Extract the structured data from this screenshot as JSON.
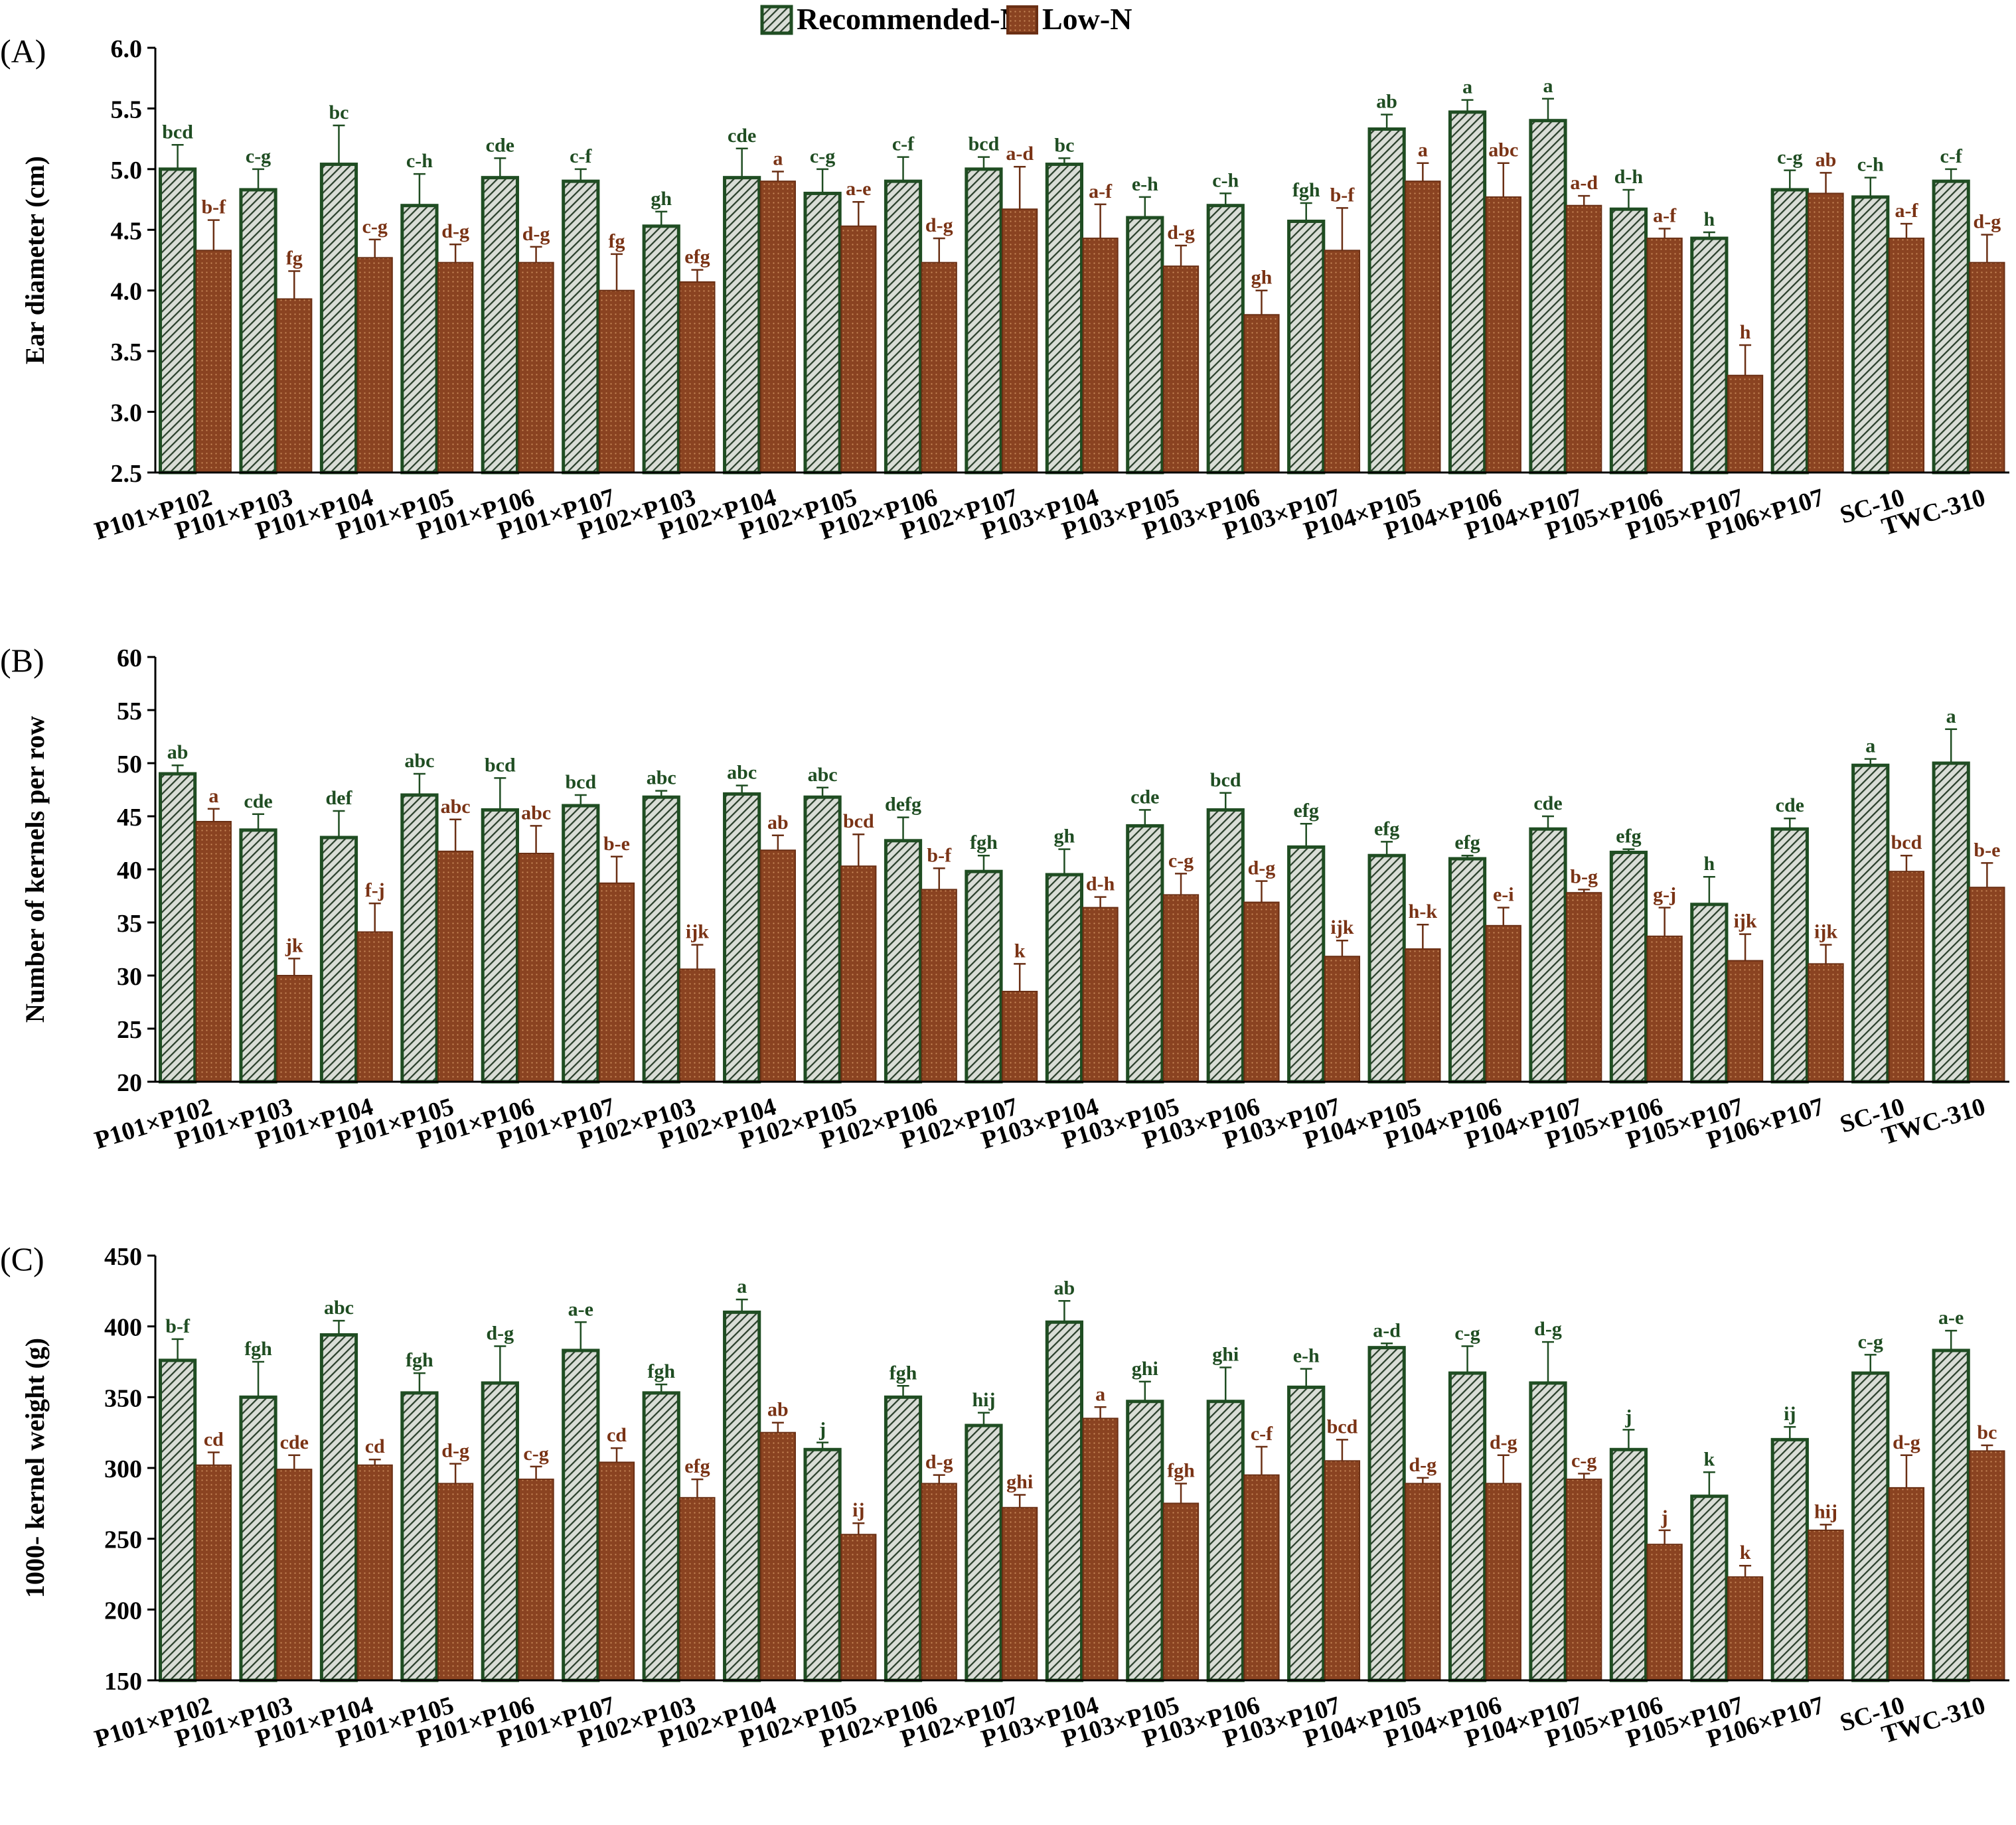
{
  "legend": {
    "recommended_label": "Recommended-N",
    "low_label": "Low-N"
  },
  "colors": {
    "recommended_fill": "#d9ddd6",
    "recommended_stroke": "#1f4d22",
    "recommended_hatch": "#2a3f2b",
    "low_fill": "#8a4321",
    "low_stroke": "#6a2f14",
    "low_dot": "#c98a5a",
    "recommended_letter": "#1f4d22",
    "low_letter": "#7a3315"
  },
  "chart_data": [
    {
      "type": "bar",
      "panel_label": "(A)",
      "ylabel": "Ear diameter (cm)",
      "ylim": [
        2.5,
        6.0
      ],
      "yticks": [
        2.5,
        3.0,
        3.5,
        4.0,
        4.5,
        5.0,
        5.5,
        6.0
      ],
      "tick_decimals": 1,
      "categories": [
        "P101×P102",
        "P101×P103",
        "P101×P104",
        "P101×P105",
        "P101×P106",
        "P101×P107",
        "P102×P103",
        "P102×P104",
        "P102×P105",
        "P102×P106",
        "P102×P107",
        "P103×P104",
        "P103×P105",
        "P103×P106",
        "P103×P107",
        "P104×P105",
        "P104×P106",
        "P104×P107",
        "P105×P106",
        "P105×P107",
        "P106×P107",
        "SC-10",
        "TWC-310"
      ],
      "series": [
        {
          "name": "Recommended-N",
          "values": [
            5.0,
            4.83,
            5.04,
            4.7,
            4.93,
            4.9,
            4.53,
            4.93,
            4.8,
            4.9,
            5.0,
            5.04,
            4.6,
            4.7,
            4.57,
            5.33,
            5.47,
            5.4,
            4.67,
            4.43,
            4.83,
            4.77,
            4.9
          ],
          "errors": [
            0.2,
            0.17,
            0.32,
            0.26,
            0.16,
            0.1,
            0.12,
            0.24,
            0.2,
            0.2,
            0.1,
            0.05,
            0.17,
            0.1,
            0.15,
            0.12,
            0.1,
            0.18,
            0.16,
            0.05,
            0.16,
            0.16,
            0.1
          ],
          "letters": [
            "bcd",
            "c-g",
            "bc",
            "c-h",
            "cde",
            "c-f",
            "gh",
            "cde",
            "c-g",
            "c-f",
            "bcd",
            "bc",
            "e-h",
            "c-h",
            "fgh",
            "ab",
            "a",
            "a",
            "d-h",
            "h",
            "c-g",
            "c-h",
            "c-f"
          ]
        },
        {
          "name": "Low-N",
          "values": [
            4.33,
            3.93,
            4.27,
            4.23,
            4.23,
            4.0,
            4.07,
            4.9,
            4.53,
            4.23,
            4.67,
            4.43,
            4.2,
            3.8,
            4.33,
            4.9,
            4.77,
            4.7,
            4.43,
            3.3,
            4.8,
            4.43,
            4.23
          ],
          "errors": [
            0.25,
            0.23,
            0.15,
            0.15,
            0.13,
            0.3,
            0.1,
            0.08,
            0.2,
            0.2,
            0.35,
            0.28,
            0.17,
            0.2,
            0.35,
            0.15,
            0.28,
            0.08,
            0.08,
            0.25,
            0.17,
            0.12,
            0.23
          ],
          "letters": [
            "b-f",
            "fg",
            "c-g",
            "d-g",
            "d-g",
            "fg",
            "efg",
            "a",
            "a-e",
            "d-g",
            "a-d",
            "a-f",
            "d-g",
            "gh",
            "b-f",
            "a",
            "abc",
            "a-d",
            "a-f",
            "h",
            "ab",
            "a-f",
            "d-g"
          ]
        }
      ]
    },
    {
      "type": "bar",
      "panel_label": "(B)",
      "ylabel": "Number of kernels per row",
      "ylim": [
        20,
        60
      ],
      "yticks": [
        20,
        25,
        30,
        35,
        40,
        45,
        50,
        55,
        60
      ],
      "tick_decimals": 0,
      "categories": [
        "P101×P102",
        "P101×P103",
        "P101×P104",
        "P101×P105",
        "P101×P106",
        "P101×P107",
        "P102×P103",
        "P102×P104",
        "P102×P105",
        "P102×P106",
        "P102×P107",
        "P103×P104",
        "P103×P105",
        "P103×P106",
        "P103×P107",
        "P104×P105",
        "P104×P106",
        "P104×P107",
        "P105×P106",
        "P105×P107",
        "P106×P107",
        "SC-10",
        "TWC-310"
      ],
      "series": [
        {
          "name": "Recommended-N",
          "values": [
            49.0,
            43.7,
            43.0,
            47.0,
            45.6,
            46.0,
            46.8,
            47.1,
            46.8,
            42.7,
            39.8,
            39.5,
            44.1,
            45.6,
            42.1,
            41.3,
            41.0,
            43.8,
            41.6,
            36.7,
            43.8,
            49.8,
            50.0
          ],
          "errors": [
            0.8,
            1.5,
            2.5,
            2.0,
            3.0,
            1.0,
            0.6,
            0.8,
            0.9,
            2.2,
            1.5,
            2.4,
            1.5,
            1.6,
            2.2,
            1.3,
            0.3,
            1.2,
            0.3,
            2.6,
            1.0,
            0.6,
            3.2
          ],
          "letters": [
            "ab",
            "cde",
            "def",
            "abc",
            "bcd",
            "bcd",
            "abc",
            "abc",
            "abc",
            "defg",
            "fgh",
            "gh",
            "cde",
            "bcd",
            "efg",
            "efg",
            "efg",
            "cde",
            "efg",
            "h",
            "cde",
            "a",
            "a"
          ]
        },
        {
          "name": "Low-N",
          "values": [
            44.5,
            30.0,
            34.1,
            41.7,
            41.5,
            38.7,
            30.6,
            41.8,
            40.3,
            38.1,
            28.5,
            36.4,
            37.6,
            36.9,
            31.8,
            32.5,
            34.7,
            37.8,
            33.7,
            31.4,
            31.1,
            39.8,
            38.3
          ],
          "errors": [
            1.2,
            1.6,
            2.7,
            3.0,
            2.6,
            2.5,
            2.3,
            1.4,
            3.0,
            2.0,
            2.6,
            1.0,
            2.0,
            2.0,
            1.5,
            2.3,
            1.7,
            0.3,
            2.7,
            2.5,
            1.8,
            1.5,
            2.3
          ],
          "letters": [
            "a",
            "jk",
            "f-j",
            "abc",
            "abc",
            "b-e",
            "ijk",
            "ab",
            "bcd",
            "b-f",
            "k",
            "d-h",
            "c-g",
            "d-g",
            "ijk",
            "h-k",
            "e-i",
            "b-g",
            "g-j",
            "ijk",
            "ijk",
            "bcd",
            "b-e"
          ]
        }
      ]
    },
    {
      "type": "bar",
      "panel_label": "(C)",
      "ylabel": "1000- kernel weight (g)",
      "ylim": [
        150,
        450
      ],
      "yticks": [
        150,
        200,
        250,
        300,
        350,
        400,
        450
      ],
      "tick_decimals": 0,
      "categories": [
        "P101×P102",
        "P101×P103",
        "P101×P104",
        "P101×P105",
        "P101×P106",
        "P101×P107",
        "P102×P103",
        "P102×P104",
        "P102×P105",
        "P102×P106",
        "P102×P107",
        "P103×P104",
        "P103×P105",
        "P103×P106",
        "P103×P107",
        "P104×P105",
        "P104×P106",
        "P104×P107",
        "P105×P106",
        "P105×P107",
        "P106×P107",
        "SC-10",
        "TWC-310"
      ],
      "series": [
        {
          "name": "Recommended-N",
          "values": [
            376,
            350,
            394,
            353,
            360,
            383,
            353,
            410,
            313,
            350,
            330,
            403,
            347,
            347,
            357,
            385,
            367,
            360,
            313,
            280,
            320,
            367,
            383
          ],
          "errors": [
            15,
            25,
            10,
            14,
            26,
            20,
            6,
            9,
            5,
            8,
            9,
            15,
            14,
            24,
            13,
            3,
            19,
            29,
            14,
            17,
            9,
            13,
            14
          ],
          "letters": [
            "b-f",
            "fgh",
            "abc",
            "fgh",
            "d-g",
            "a-e",
            "fgh",
            "a",
            "j",
            "fgh",
            "hij",
            "ab",
            "ghi",
            "ghi",
            "e-h",
            "a-d",
            "c-g",
            "d-g",
            "j",
            "k",
            "ij",
            "c-g",
            "a-e"
          ]
        },
        {
          "name": "Low-N",
          "values": [
            302,
            299,
            302,
            289,
            292,
            304,
            279,
            325,
            253,
            289,
            272,
            335,
            275,
            295,
            305,
            289,
            289,
            292,
            246,
            223,
            256,
            286,
            312
          ],
          "errors": [
            9,
            10,
            4,
            14,
            9,
            10,
            13,
            7,
            8,
            6,
            9,
            8,
            14,
            20,
            15,
            4,
            20,
            4,
            10,
            8,
            4,
            23,
            4
          ],
          "letters": [
            "cd",
            "cde",
            "cd",
            "d-g",
            "c-g",
            "cd",
            "efg",
            "ab",
            "ij",
            "d-g",
            "ghi",
            "a",
            "fgh",
            "c-f",
            "bcd",
            "d-g",
            "d-g",
            "c-g",
            "j",
            "k",
            "hij",
            "d-g",
            "bc"
          ]
        }
      ]
    }
  ]
}
